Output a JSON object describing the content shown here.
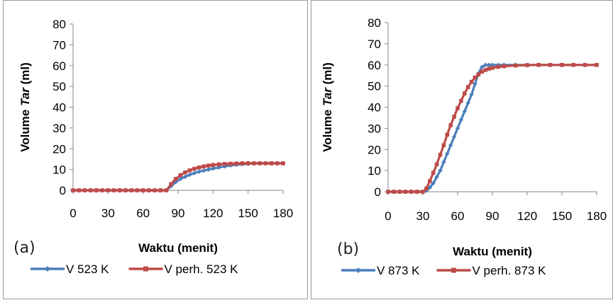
{
  "chart_data": [
    {
      "type": "line",
      "panel_label": "(a)",
      "xlabel": "Waktu (menit)",
      "ylabel_prefix": "Volume ",
      "ylabel_italic": "Tar",
      "ylabel_suffix": " (ml)",
      "xlim": [
        0,
        180
      ],
      "ylim": [
        0,
        80
      ],
      "x_ticks": [
        "0",
        "30",
        "60",
        "90",
        "120",
        "150",
        "180"
      ],
      "y_ticks": [
        "0",
        "10",
        "20",
        "30",
        "40",
        "50",
        "60",
        "70",
        "80"
      ],
      "grid": false,
      "legend_position": "bottom",
      "colors": [
        "#4a7ebb",
        "#be4b48"
      ],
      "series": [
        {
          "name": "V 523 K",
          "x": [
            0,
            5,
            10,
            15,
            20,
            25,
            30,
            35,
            40,
            45,
            50,
            55,
            60,
            65,
            70,
            75,
            80,
            84,
            88,
            92,
            96,
            100,
            104,
            108,
            112,
            116,
            120,
            125,
            130,
            135,
            140,
            145,
            150,
            155,
            160,
            165,
            170,
            175,
            180
          ],
          "values": [
            0,
            0,
            0,
            0,
            0,
            0,
            0,
            0,
            0,
            0,
            0,
            0,
            0,
            0,
            0,
            0,
            0,
            2,
            4,
            5.5,
            6.5,
            7.5,
            8.3,
            9,
            9.5,
            10,
            10.5,
            11,
            11.5,
            12,
            12.3,
            12.6,
            12.8,
            13,
            13,
            13,
            13,
            13,
            13
          ]
        },
        {
          "name": "V perh. 523 K",
          "x": [
            0,
            5,
            10,
            15,
            20,
            25,
            30,
            35,
            40,
            45,
            50,
            55,
            60,
            65,
            70,
            75,
            80,
            84,
            88,
            92,
            96,
            100,
            104,
            108,
            112,
            116,
            120,
            125,
            130,
            135,
            140,
            145,
            150,
            155,
            160,
            165,
            170,
            175,
            180
          ],
          "values": [
            0,
            0,
            0,
            0,
            0,
            0,
            0,
            0,
            0,
            0,
            0,
            0,
            0,
            0,
            0,
            0,
            0,
            3,
            5.5,
            7.3,
            8.6,
            9.6,
            10.4,
            11,
            11.5,
            11.9,
            12.2,
            12.5,
            12.7,
            12.8,
            12.9,
            13,
            13,
            13,
            13,
            13,
            13,
            13,
            13
          ]
        }
      ]
    },
    {
      "type": "line",
      "panel_label": "(b)",
      "xlabel": "Waktu (menit)",
      "ylabel_prefix": "Volume ",
      "ylabel_italic": "Tar",
      "ylabel_suffix": " (ml)",
      "xlim": [
        0,
        180
      ],
      "ylim": [
        0,
        80
      ],
      "x_ticks": [
        "0",
        "30",
        "60",
        "90",
        "120",
        "150",
        "180"
      ],
      "y_ticks": [
        "0",
        "10",
        "20",
        "30",
        "40",
        "50",
        "60",
        "70",
        "80"
      ],
      "grid": false,
      "legend_position": "bottom",
      "colors": [
        "#4a7ebb",
        "#be4b48"
      ],
      "series": [
        {
          "name": "V 873 K",
          "x": [
            0,
            5,
            10,
            15,
            20,
            25,
            30,
            33,
            36,
            39,
            42,
            45,
            48,
            51,
            54,
            57,
            60,
            63,
            66,
            69,
            72,
            75,
            78,
            81,
            84,
            87,
            90,
            95,
            100,
            110,
            120,
            130,
            140,
            150,
            160,
            170,
            180
          ],
          "values": [
            0,
            0,
            0,
            0,
            0,
            0,
            0,
            0.5,
            2,
            4,
            7,
            10,
            14,
            18,
            22,
            26,
            30,
            34,
            38,
            42,
            46,
            51,
            56,
            59,
            60,
            60,
            60,
            60,
            60,
            60,
            60,
            60,
            60,
            60,
            60,
            60,
            60
          ]
        },
        {
          "name": "V perh. 873 K",
          "x": [
            0,
            5,
            10,
            15,
            20,
            25,
            30,
            33,
            36,
            39,
            42,
            45,
            48,
            51,
            54,
            57,
            60,
            63,
            66,
            69,
            72,
            75,
            78,
            81,
            84,
            87,
            90,
            95,
            100,
            110,
            120,
            130,
            140,
            150,
            160,
            170,
            180
          ],
          "values": [
            0,
            0,
            0,
            0,
            0,
            0,
            0,
            1.5,
            5,
            9,
            13,
            17.5,
            22,
            27,
            31.5,
            35.5,
            39.5,
            43,
            46.5,
            49.5,
            52,
            54,
            55.5,
            56.8,
            57.6,
            58.2,
            58.6,
            59.1,
            59.4,
            59.7,
            59.9,
            60,
            60,
            60,
            60,
            60,
            60
          ]
        }
      ]
    }
  ]
}
